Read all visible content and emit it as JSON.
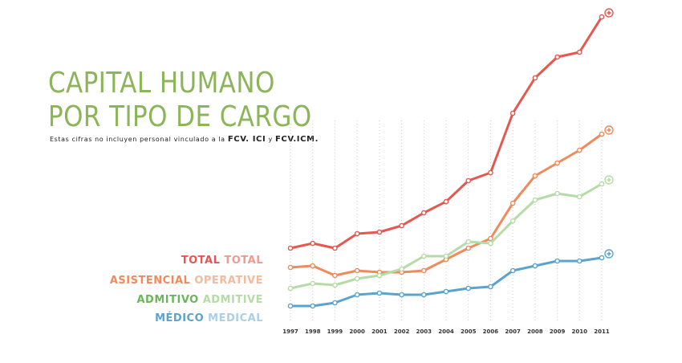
{
  "title": {
    "line1": "CAPITAL HUMANO",
    "line2": "POR TIPO DE CARGO"
  },
  "subtitle": {
    "prefix": "Estas cifras no incluyen personal vinculado a la",
    "fcv_ici": "FCV. ICI",
    "connector": "y",
    "fcv_icm": "FCV.ICM."
  },
  "legend": [
    {
      "es": "TOTAL",
      "en": "TOTAL",
      "color": "#e5574f",
      "light": "#ef9a92"
    },
    {
      "es": "ASISTENCIAL",
      "en": "OPERATIVE",
      "color": "#ef8a5c",
      "light": "#f5b99c"
    },
    {
      "es": "ADMITIVO",
      "en": "ADMITIVE",
      "color": "#6db55a",
      "light": "#b5dba6"
    },
    {
      "es": "MÉDICO",
      "en": "MEDICAL",
      "color": "#5ba3cf",
      "light": "#a9d0e8"
    }
  ],
  "chart_data": {
    "type": "line",
    "x": [
      "1997",
      "1998",
      "1999",
      "2000",
      "2001",
      "2002",
      "2003",
      "2004",
      "2005",
      "2006",
      "2007",
      "2008",
      "2009",
      "2010",
      "2011"
    ],
    "series": [
      {
        "name": "TOTAL TOTAL",
        "color": "#e5574f",
        "values": [
          46,
          49,
          46,
          55,
          56,
          60,
          68,
          75,
          88,
          93,
          130,
          152,
          165,
          168,
          190
        ]
      },
      {
        "name": "ASISTENCIAL OPERATIVE",
        "color": "#ef8a5c",
        "values": [
          34,
          35,
          29,
          32,
          31,
          31,
          32,
          39,
          46,
          52,
          74,
          91,
          99,
          107,
          117
        ]
      },
      {
        "name": "ADMITIVO ADMITIVE",
        "color": "#b5dba6",
        "values": [
          21,
          24,
          23,
          27,
          29,
          33,
          41,
          41,
          50,
          49,
          63,
          76,
          80,
          78,
          86
        ]
      },
      {
        "name": "MÉDICO MEDICAL",
        "color": "#5ba3cf",
        "values": [
          10,
          10,
          12,
          17,
          18,
          17,
          17,
          19,
          21,
          22,
          32,
          35,
          38,
          38,
          40
        ]
      }
    ],
    "end_marker": "plus-circle-icon",
    "grid": "vertical dotted",
    "title": "",
    "xlabel": "",
    "ylabel": ""
  }
}
